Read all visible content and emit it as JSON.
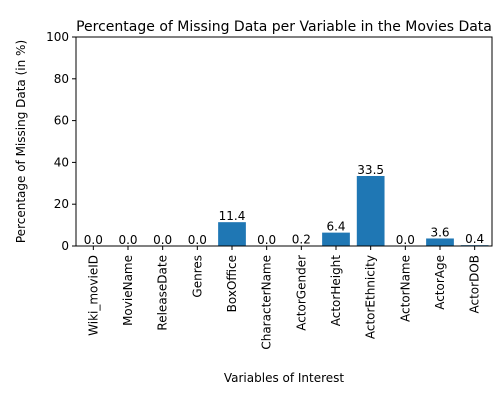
{
  "chart_data": {
    "type": "bar",
    "title": "Percentage of Missing Data per Variable in the Movies Data",
    "xlabel": "Variables of Interest",
    "ylabel": "Percentage of Missing Data (in %)",
    "ylim": [
      0,
      100
    ],
    "yticks": [
      0,
      20,
      40,
      60,
      80,
      100
    ],
    "grid": false,
    "bar_color": "#1f77b4",
    "categories": [
      "Wiki_movieID",
      "MovieName",
      "ReleaseDate",
      "Genres",
      "BoxOffice",
      "CharacterName",
      "ActorGender",
      "ActorHeight",
      "ActorEthnicity",
      "ActorName",
      "ActorAge",
      "ActorDOB"
    ],
    "values": [
      0.0,
      0.0,
      0.0,
      0.0,
      11.4,
      0.0,
      0.2,
      6.4,
      33.5,
      0.0,
      3.6,
      0.4
    ],
    "data_labels": [
      "0.0",
      "0.0",
      "0.0",
      "0.0",
      "11.4",
      "0.0",
      "0.2",
      "6.4",
      "33.5",
      "0.0",
      "3.6",
      "0.4"
    ]
  }
}
